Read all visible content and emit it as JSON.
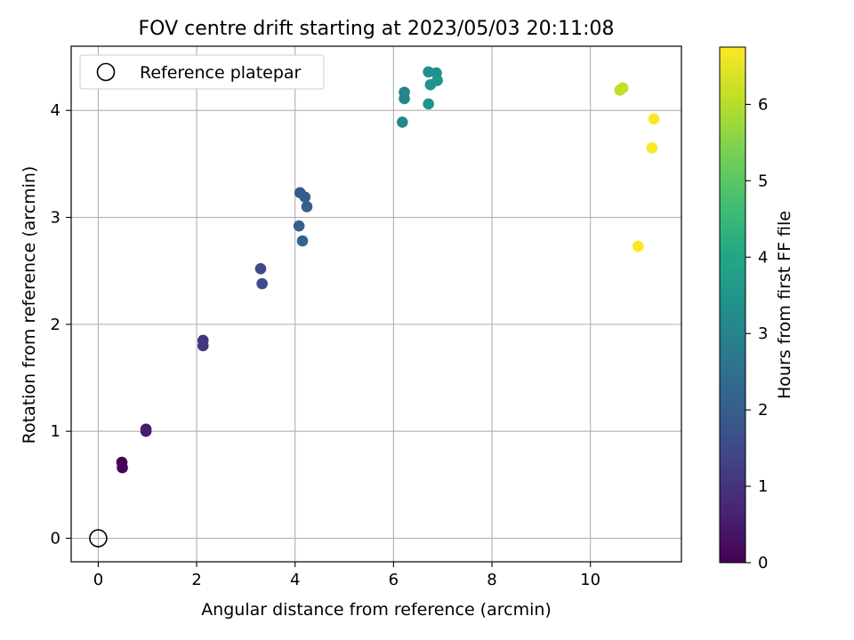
{
  "chart_data": {
    "type": "scatter",
    "title": "FOV centre drift starting at 2023/05/03 20:11:08",
    "xlabel": "Angular distance from reference (arcmin)",
    "ylabel": "Rotation from reference (arcmin)",
    "xlim": [
      -0.55,
      11.85
    ],
    "ylim": [
      -0.22,
      4.6
    ],
    "xticks": [
      0,
      2,
      4,
      6,
      8,
      10
    ],
    "yticks": [
      0,
      1,
      2,
      3,
      4
    ],
    "grid": true,
    "legend": {
      "placement": "top-left",
      "entries": [
        {
          "label": "Reference platepar",
          "marker": "open-circle"
        }
      ]
    },
    "reference_point": {
      "x": 0,
      "y": 0
    },
    "colorbar": {
      "label": "Hours from first FF file",
      "colormap": "viridis",
      "range": [
        0,
        6.75
      ],
      "ticks": [
        0,
        1,
        2,
        3,
        4,
        5,
        6
      ]
    },
    "points": [
      {
        "x": 0.48,
        "y": 0.71,
        "hours": 0.05
      },
      {
        "x": 0.49,
        "y": 0.66,
        "hours": 0.1
      },
      {
        "x": 0.97,
        "y": 1.02,
        "hours": 0.5
      },
      {
        "x": 0.97,
        "y": 1.0,
        "hours": 0.55
      },
      {
        "x": 2.13,
        "y": 1.85,
        "hours": 1.0
      },
      {
        "x": 2.13,
        "y": 1.8,
        "hours": 1.05
      },
      {
        "x": 3.3,
        "y": 2.52,
        "hours": 1.5
      },
      {
        "x": 3.33,
        "y": 2.38,
        "hours": 1.55
      },
      {
        "x": 4.1,
        "y": 3.23,
        "hours": 1.9
      },
      {
        "x": 4.2,
        "y": 3.19,
        "hours": 1.95
      },
      {
        "x": 4.24,
        "y": 3.1,
        "hours": 2.0
      },
      {
        "x": 4.08,
        "y": 2.92,
        "hours": 2.05
      },
      {
        "x": 4.15,
        "y": 2.78,
        "hours": 2.1
      },
      {
        "x": 6.22,
        "y": 4.17,
        "hours": 3.0
      },
      {
        "x": 6.22,
        "y": 4.11,
        "hours": 3.05
      },
      {
        "x": 6.18,
        "y": 3.89,
        "hours": 3.1
      },
      {
        "x": 6.71,
        "y": 4.36,
        "hours": 3.3
      },
      {
        "x": 6.87,
        "y": 4.35,
        "hours": 3.35
      },
      {
        "x": 6.75,
        "y": 4.24,
        "hours": 3.4
      },
      {
        "x": 6.89,
        "y": 4.28,
        "hours": 3.45
      },
      {
        "x": 6.71,
        "y": 4.06,
        "hours": 3.5
      },
      {
        "x": 10.6,
        "y": 4.19,
        "hours": 6.1
      },
      {
        "x": 10.66,
        "y": 4.21,
        "hours": 6.15
      },
      {
        "x": 11.29,
        "y": 3.92,
        "hours": 6.72
      },
      {
        "x": 11.25,
        "y": 3.65,
        "hours": 6.72
      },
      {
        "x": 10.97,
        "y": 2.73,
        "hours": 6.75
      }
    ]
  }
}
